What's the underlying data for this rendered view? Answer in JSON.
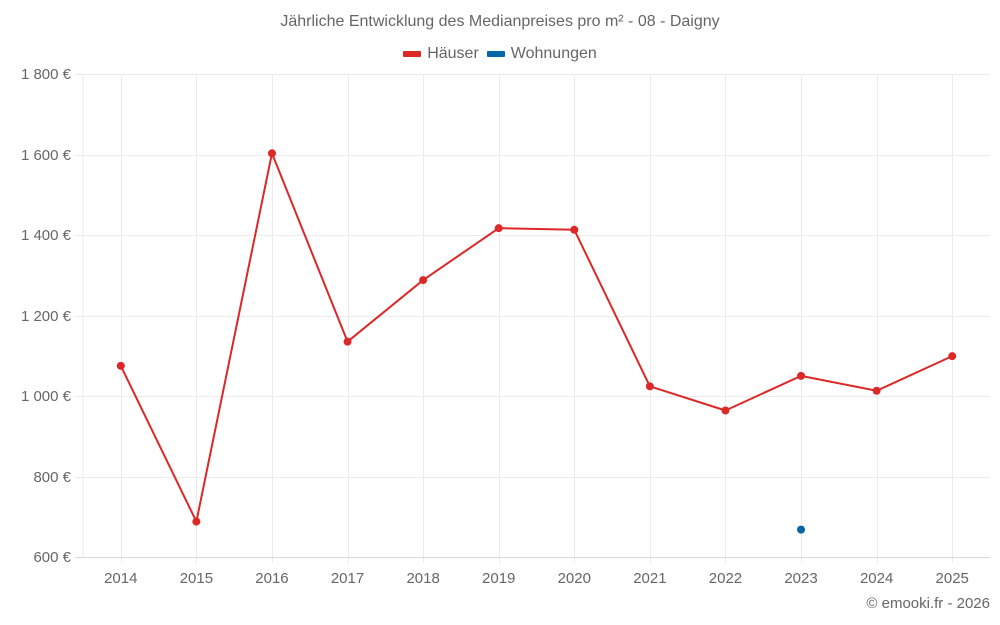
{
  "chart_data": {
    "type": "line",
    "title": "Jährliche Entwicklung des Medianpreises pro m² - 08 - Daigny",
    "xlabel": "",
    "ylabel": "",
    "categories": [
      "2014",
      "2015",
      "2016",
      "2017",
      "2018",
      "2019",
      "2020",
      "2021",
      "2022",
      "2023",
      "2024",
      "2025"
    ],
    "series": [
      {
        "name": "Häuser",
        "color": "#dd2828",
        "values": [
          1075,
          688,
          1603,
          1135,
          1288,
          1417,
          1413,
          1024,
          964,
          1050,
          1013,
          1099
        ]
      },
      {
        "name": "Wohnungen",
        "color": "#0068a8",
        "values": [
          null,
          null,
          null,
          null,
          null,
          null,
          null,
          null,
          null,
          668,
          null,
          null
        ]
      }
    ],
    "ylim": [
      600,
      1800
    ],
    "yticks": [
      600,
      800,
      1000,
      1200,
      1400,
      1600,
      1800
    ],
    "ytick_labels": [
      "600 €",
      "800 €",
      "1 000 €",
      "1 200 €",
      "1 400 €",
      "1 600 €",
      "1 800 €"
    ],
    "grid": true,
    "legend_position": "top-center"
  },
  "title": "Jährliche Entwicklung des Medianpreises pro m² - 08 - Daigny",
  "legend": [
    {
      "label": "Häuser",
      "color": "#dd2828"
    },
    {
      "label": "Wohnungen",
      "color": "#0068a8"
    }
  ],
  "credit": "© emooki.fr - 2026"
}
